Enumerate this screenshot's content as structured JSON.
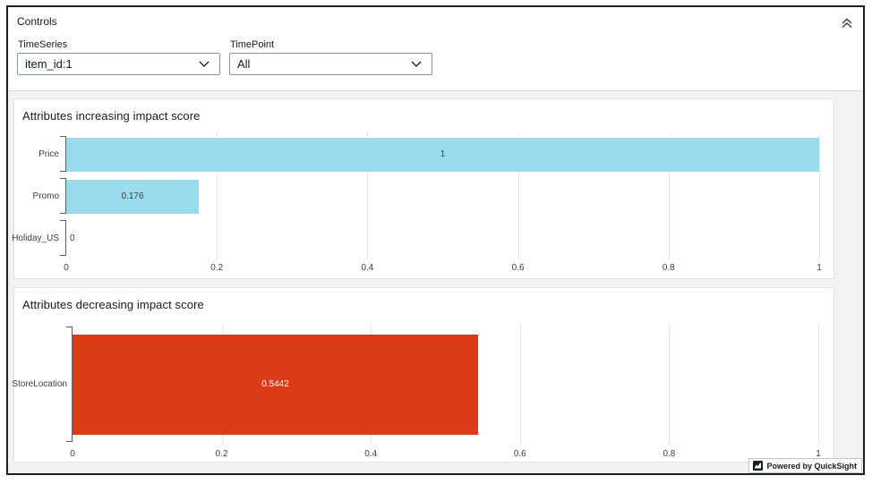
{
  "controls": {
    "title": "Controls",
    "collapse_icon": "chevrons-up",
    "filters": [
      {
        "label": "TimeSeries",
        "value": "item_id:1"
      },
      {
        "label": "TimePoint",
        "value": "All"
      }
    ]
  },
  "chart_data": [
    {
      "type": "bar",
      "orientation": "horizontal",
      "title": "Attributes increasing impact score",
      "categories": [
        "Price",
        "Promo",
        "Holiday_US"
      ],
      "values": [
        1,
        0.176,
        0
      ],
      "value_labels": [
        "1",
        "0.176",
        "0"
      ],
      "xlim": [
        0,
        1
      ],
      "xticks": [
        0,
        0.2,
        0.4,
        0.6,
        0.8,
        1
      ],
      "xtick_labels": [
        "0",
        "0.2",
        "0.4",
        "0.6",
        "0.8",
        "1"
      ],
      "grid": true,
      "legend": "none",
      "bar_color": "#9adbee",
      "value_label_color": "#3c4043"
    },
    {
      "type": "bar",
      "orientation": "horizontal",
      "title": "Attributes decreasing impact score",
      "categories": [
        "StoreLocation"
      ],
      "values": [
        0.5442
      ],
      "value_labels": [
        "0.5442"
      ],
      "xlim": [
        0,
        1
      ],
      "xticks": [
        0,
        0.2,
        0.4,
        0.6,
        0.8,
        1
      ],
      "xtick_labels": [
        "0",
        "0.2",
        "0.4",
        "0.6",
        "0.8",
        "1"
      ],
      "grid": true,
      "legend": "none",
      "bar_color": "#dd3a16",
      "value_label_color": "#ffffff"
    }
  ],
  "footer": {
    "powered_by": "Powered by QuickSight"
  }
}
